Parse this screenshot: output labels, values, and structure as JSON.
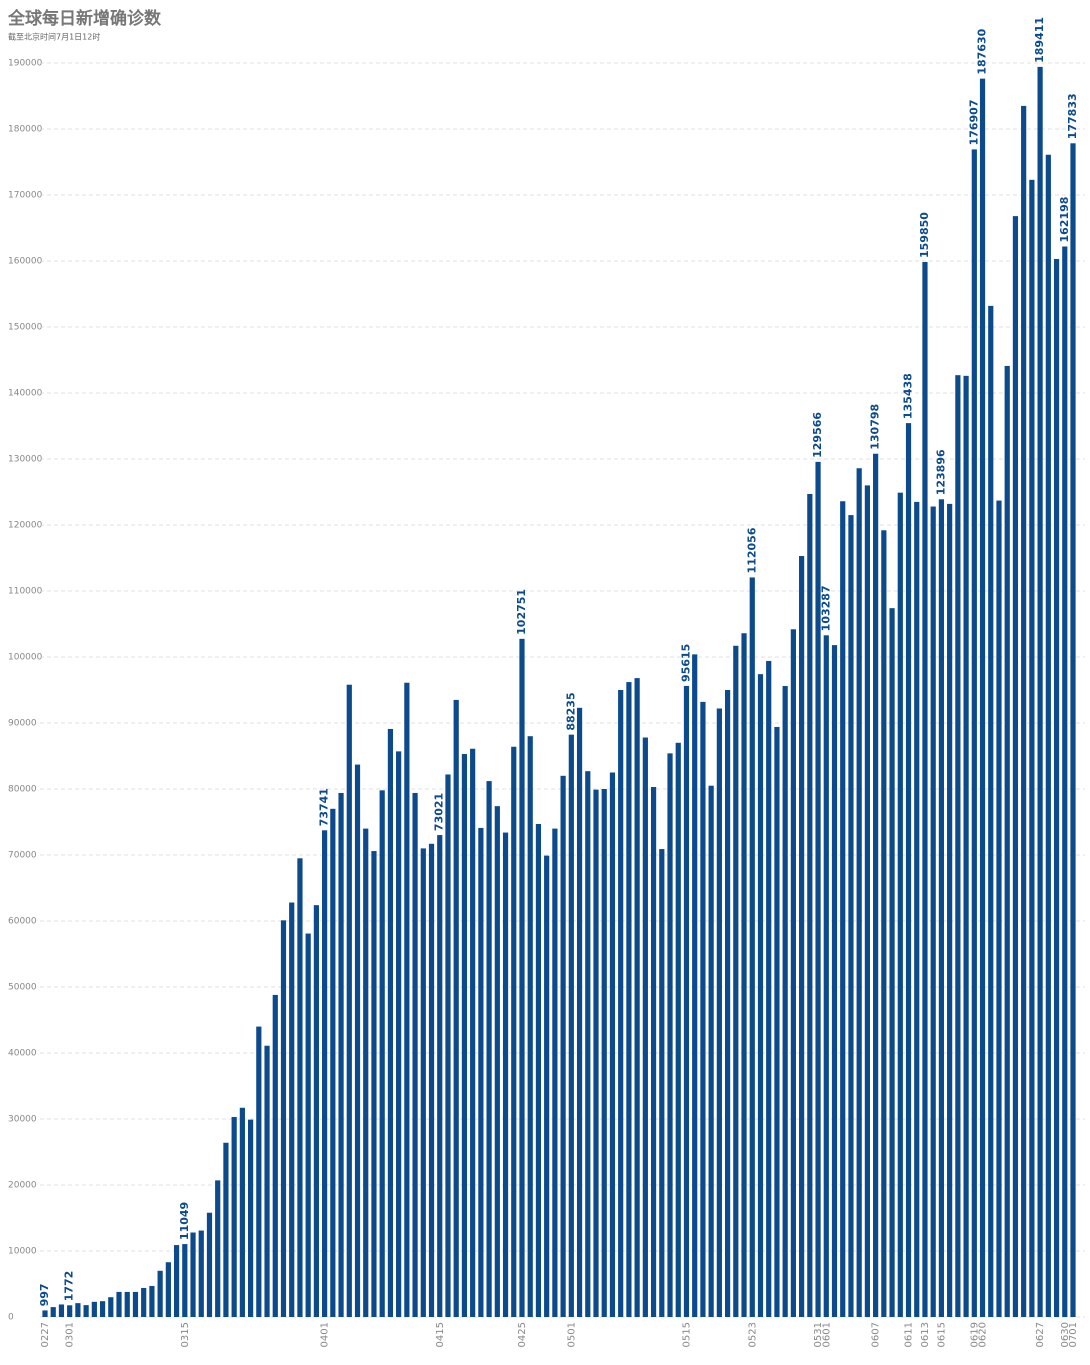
{
  "chart_data": {
    "type": "bar",
    "title": "全球每日新增确诊数",
    "subtitle": "截至北京时间7月1日12时",
    "color": "#0c4a8c",
    "grid": true,
    "ylim": [
      0,
      190000
    ],
    "yticks": [
      0,
      10000,
      20000,
      30000,
      40000,
      50000,
      60000,
      70000,
      80000,
      90000,
      100000,
      110000,
      120000,
      130000,
      140000,
      150000,
      160000,
      170000,
      180000,
      190000
    ],
    "categories": [
      "0227",
      null,
      null,
      "0301",
      null,
      null,
      null,
      null,
      null,
      null,
      null,
      null,
      null,
      null,
      null,
      null,
      null,
      "0315",
      null,
      null,
      null,
      null,
      null,
      null,
      null,
      null,
      null,
      null,
      null,
      null,
      null,
      null,
      null,
      null,
      "0401",
      null,
      null,
      null,
      null,
      null,
      null,
      null,
      null,
      null,
      null,
      null,
      null,
      null,
      "0415",
      null,
      null,
      null,
      null,
      null,
      null,
      null,
      null,
      null,
      "0425",
      null,
      null,
      null,
      null,
      null,
      "0501",
      null,
      null,
      null,
      null,
      null,
      null,
      null,
      null,
      null,
      null,
      null,
      null,
      null,
      "0515",
      null,
      null,
      null,
      null,
      null,
      null,
      null,
      "0523",
      null,
      null,
      null,
      null,
      null,
      null,
      null,
      "0531",
      "0601",
      null,
      null,
      null,
      null,
      null,
      "0607",
      null,
      null,
      null,
      "0611",
      null,
      "0613",
      null,
      "0615",
      null,
      null,
      null,
      "0619",
      "0620",
      null,
      null,
      null,
      null,
      null,
      null,
      "0627",
      null,
      null,
      "0630",
      "0701"
    ],
    "values": [
      997,
      1500,
      1900,
      1772,
      2100,
      1800,
      2300,
      2400,
      3000,
      3800,
      3800,
      3800,
      4400,
      4700,
      7000,
      8300,
      10900,
      11049,
      12800,
      13100,
      15800,
      20700,
      26400,
      30300,
      31700,
      29900,
      44000,
      41100,
      48800,
      60100,
      62800,
      69500,
      58100,
      62400,
      73741,
      77000,
      79400,
      95800,
      83700,
      74000,
      70600,
      79800,
      89100,
      85700,
      96100,
      79400,
      71000,
      71700,
      73021,
      82200,
      93500,
      85300,
      86100,
      74100,
      81200,
      77400,
      73400,
      86400,
      102751,
      88000,
      74700,
      69900,
      74000,
      82000,
      88235,
      92300,
      82700,
      79900,
      80000,
      82500,
      95000,
      96200,
      96800,
      87800,
      80300,
      70900,
      85400,
      87000,
      95615,
      100400,
      93200,
      80500,
      92200,
      95000,
      101700,
      103600,
      112056,
      97400,
      99400,
      89400,
      95600,
      104200,
      115300,
      124700,
      129566,
      103287,
      101800,
      123600,
      121500,
      128600,
      126000,
      130798,
      119200,
      107400,
      124900,
      135438,
      123500,
      159850,
      122800,
      123896,
      123200,
      142700,
      142600,
      176907,
      187630,
      153200,
      123700,
      144100,
      166800,
      183500,
      172300,
      189411,
      176100,
      160300,
      162198,
      177833
    ]
  }
}
